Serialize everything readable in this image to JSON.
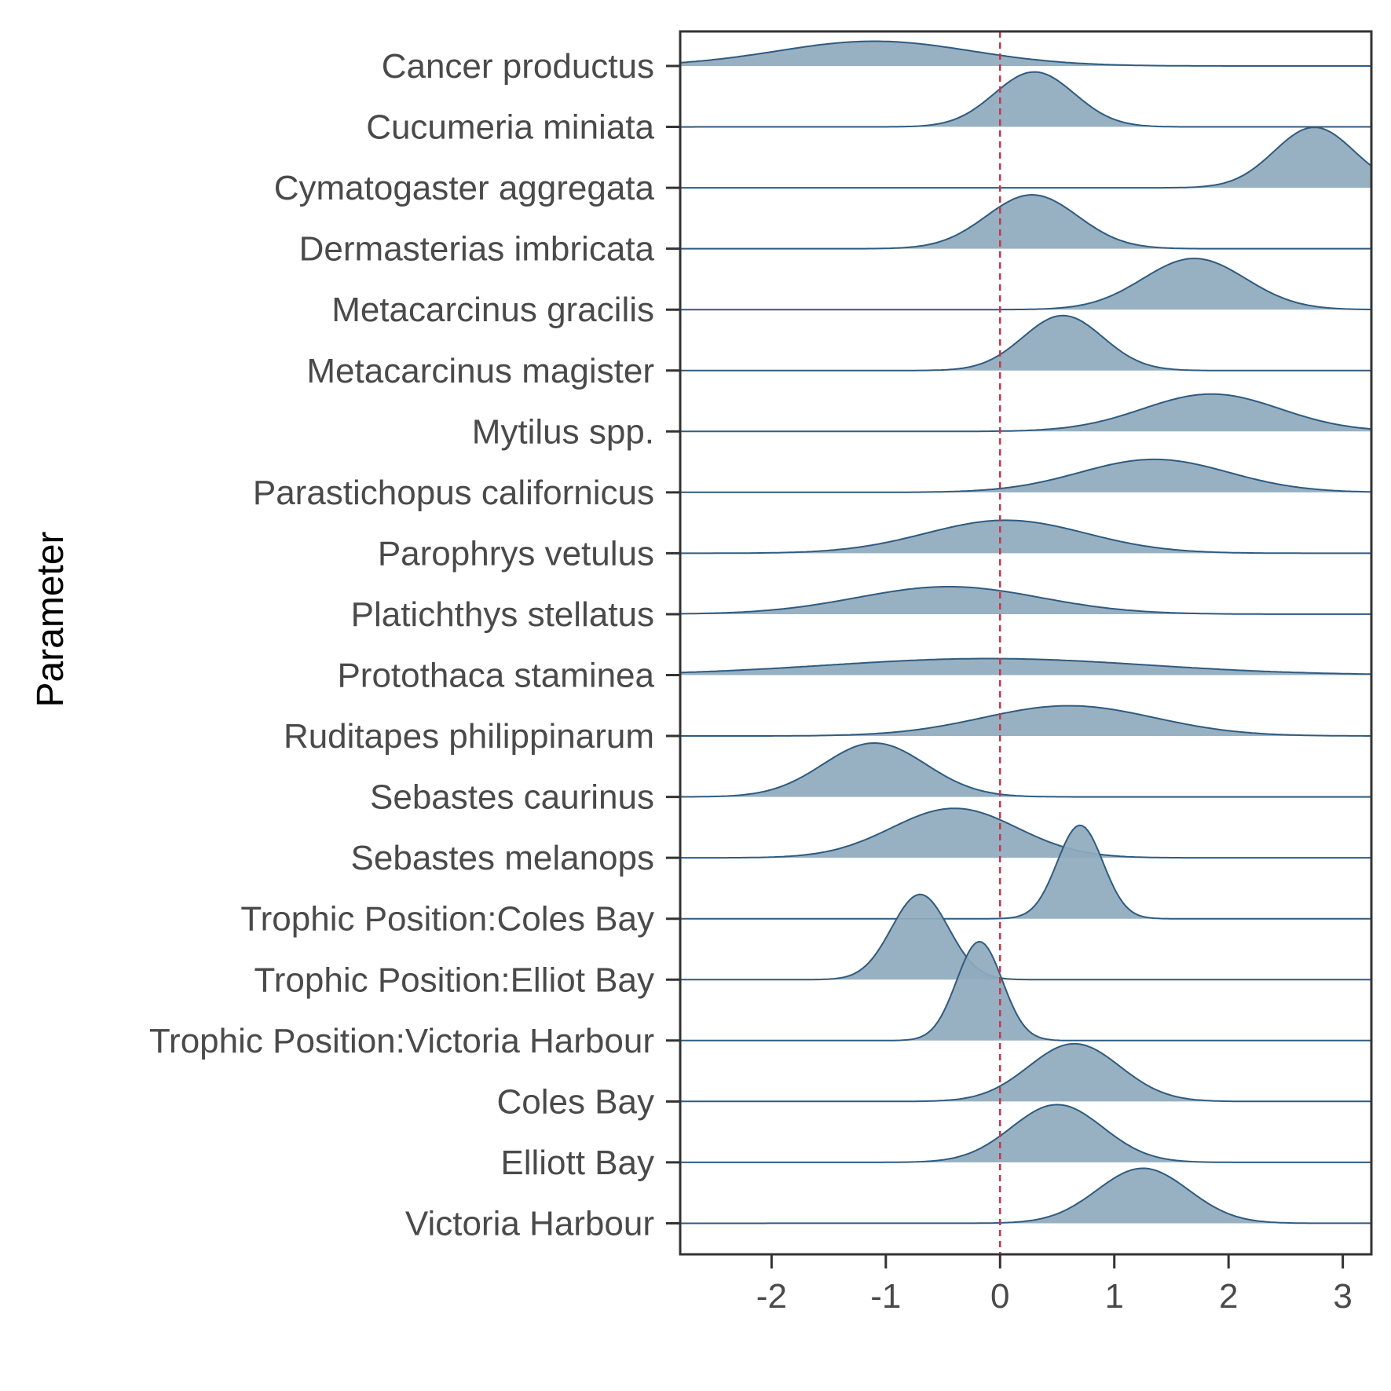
{
  "chart_data": {
    "type": "ridgeline",
    "title": "",
    "xlabel": "",
    "ylabel": "Parameter",
    "xlim": [
      -2.8,
      3.25
    ],
    "x_ticks": [
      -2,
      -1,
      0,
      1,
      2,
      3
    ],
    "reference_line": {
      "x": 0,
      "style": "dashed",
      "color": "#c0394b"
    },
    "colors": {
      "fill": "#8faabd",
      "line": "#2f5b80",
      "axis": "#333333"
    },
    "ridge_height_scale": 1.0,
    "series": [
      {
        "name": "Cancer productus",
        "mean": -1.1,
        "sd": 0.85,
        "peak": 0.45,
        "skew": 0.0
      },
      {
        "name": "Cucumeria miniata",
        "mean": 0.3,
        "sd": 0.35,
        "peak": 1.0,
        "skew": 0.0
      },
      {
        "name": "Cymatogaster aggregata",
        "mean": 2.75,
        "sd": 0.35,
        "peak": 1.1,
        "skew": 0.0
      },
      {
        "name": "Dermasterias imbricata",
        "mean": 0.28,
        "sd": 0.4,
        "peak": 0.98,
        "skew": 0.0
      },
      {
        "name": "Metacarcinus gracilis",
        "mean": 1.7,
        "sd": 0.45,
        "peak": 0.93,
        "skew": 0.0
      },
      {
        "name": "Metacarcinus magister",
        "mean": 0.55,
        "sd": 0.35,
        "peak": 1.0,
        "skew": 0.0
      },
      {
        "name": "Mytilus spp.",
        "mean": 1.85,
        "sd": 0.6,
        "peak": 0.68,
        "skew": 0.0
      },
      {
        "name": "Parastichopus californicus",
        "mean": 1.35,
        "sd": 0.65,
        "peak": 0.6,
        "skew": 0.0
      },
      {
        "name": "Parophrys vetulus",
        "mean": 0.05,
        "sd": 0.7,
        "peak": 0.6,
        "skew": 0.0
      },
      {
        "name": "Platichthys stellatus",
        "mean": -0.45,
        "sd": 0.8,
        "peak": 0.5,
        "skew": 0.0
      },
      {
        "name": "Protothaca staminea",
        "mean": -0.1,
        "sd": 1.4,
        "peak": 0.3,
        "skew": 0.0
      },
      {
        "name": "Ruditapes philippinarum",
        "mean": 0.6,
        "sd": 0.75,
        "peak": 0.55,
        "skew": 0.0
      },
      {
        "name": "Sebastes caurinus",
        "mean": -1.1,
        "sd": 0.45,
        "peak": 0.98,
        "skew": 0.0
      },
      {
        "name": "Sebastes melanops",
        "mean": -0.4,
        "sd": 0.55,
        "peak": 0.9,
        "skew": 0.0
      },
      {
        "name": "Trophic Position:Coles Bay",
        "mean": 0.7,
        "sd": 0.2,
        "peak": 1.7,
        "skew": 0.0
      },
      {
        "name": "Trophic Position:Elliot Bay",
        "mean": -0.7,
        "sd": 0.25,
        "peak": 1.55,
        "skew": 0.0
      },
      {
        "name": "Trophic Position:Victoria Harbour",
        "mean": -0.18,
        "sd": 0.2,
        "peak": 1.8,
        "skew": 0.0
      },
      {
        "name": "Coles Bay",
        "mean": 0.65,
        "sd": 0.4,
        "peak": 1.05,
        "skew": 0.0
      },
      {
        "name": "Elliott Bay",
        "mean": 0.5,
        "sd": 0.4,
        "peak": 1.05,
        "skew": 0.0
      },
      {
        "name": "Victoria Harbour",
        "mean": 1.25,
        "sd": 0.4,
        "peak": 1.0,
        "skew": 0.0
      }
    ]
  }
}
